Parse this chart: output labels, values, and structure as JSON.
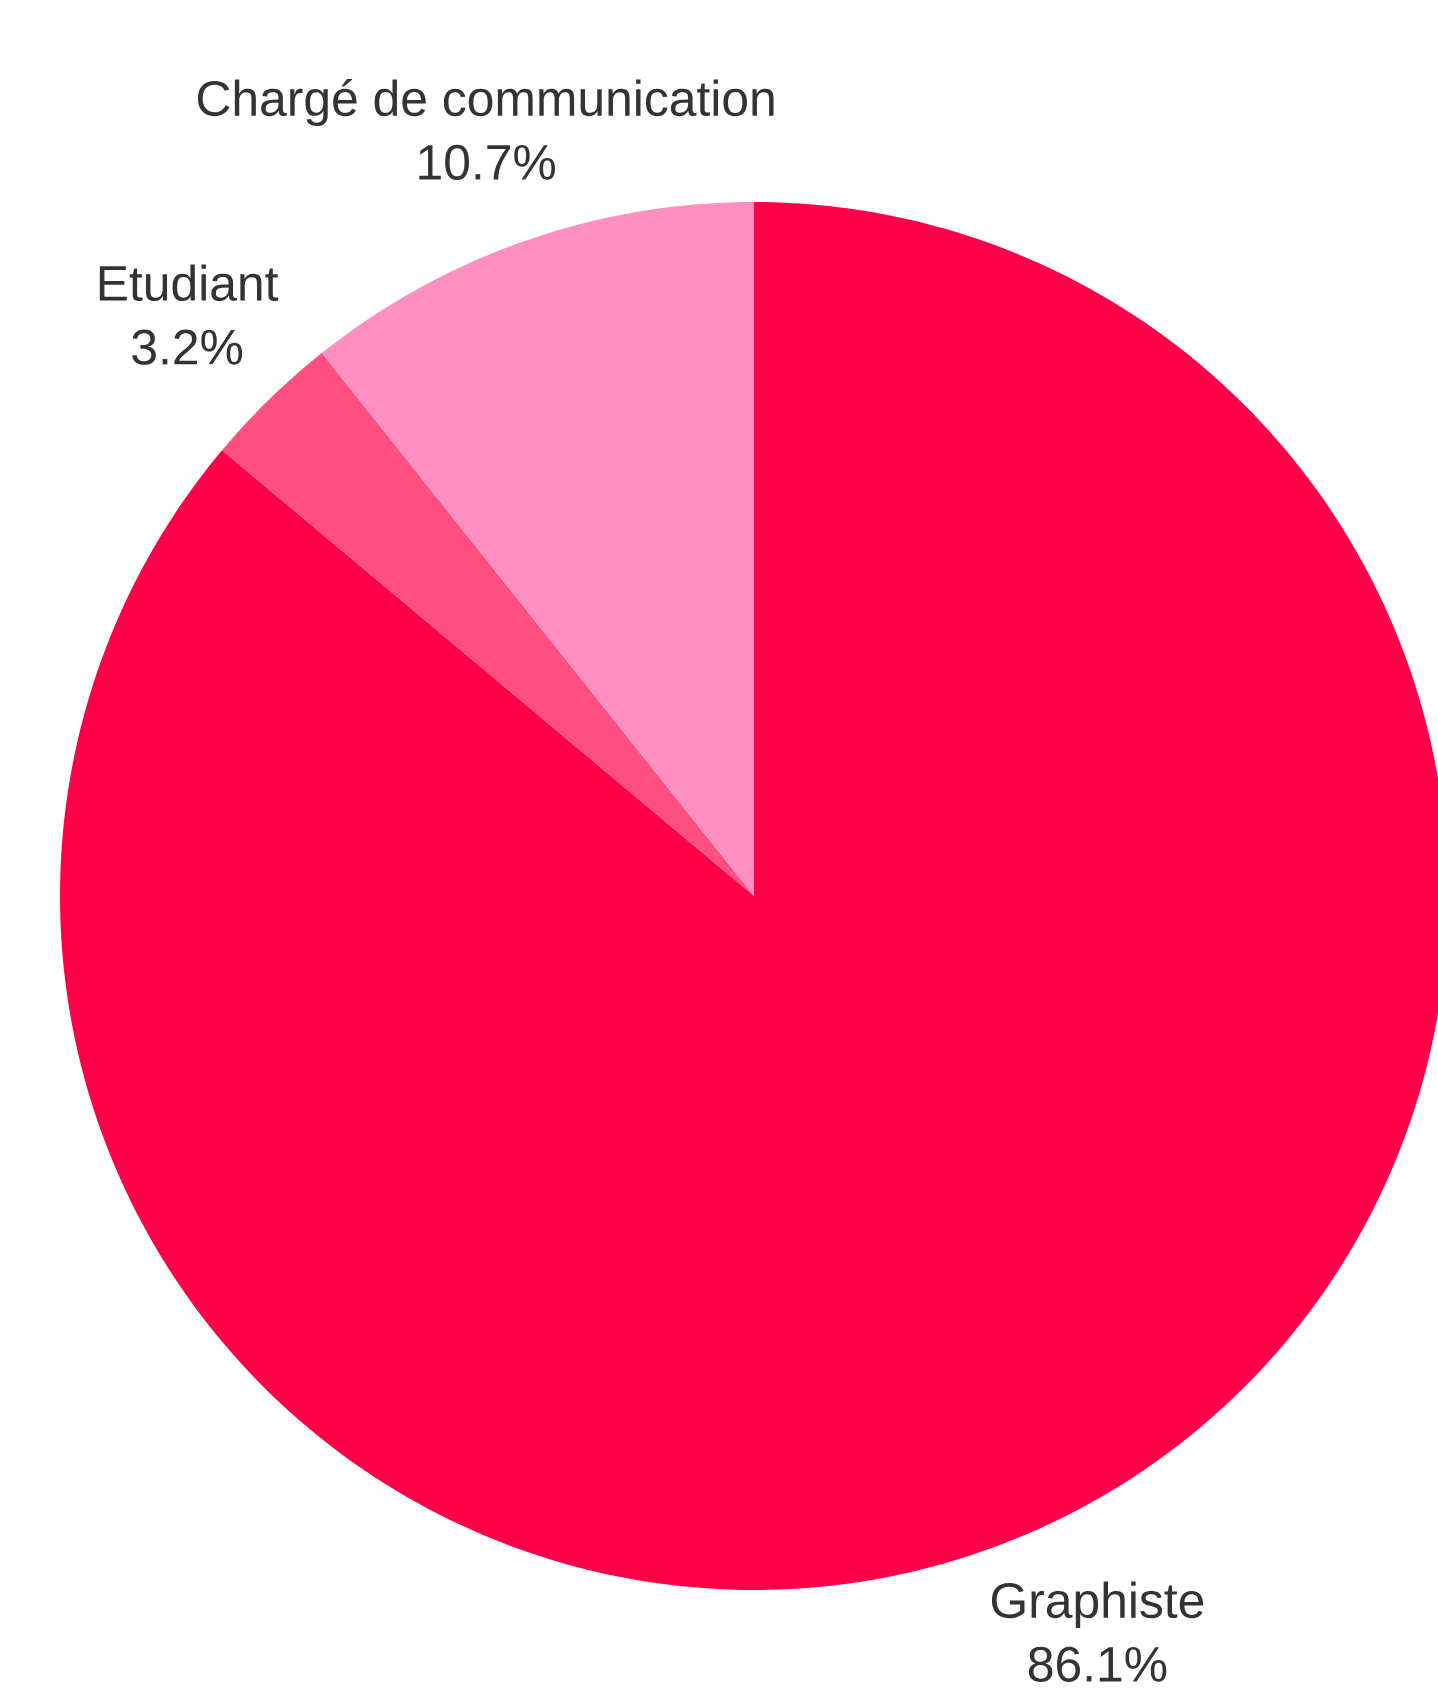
{
  "chart_data": {
    "type": "pie",
    "categories": [
      "Graphiste",
      "Etudiant",
      "Chargé de communication"
    ],
    "values": [
      86.1,
      3.2,
      10.7
    ],
    "value_labels": [
      "86.1%",
      "3.2%",
      "10.7%"
    ],
    "colors": [
      "#ff0048",
      "#ff4f80",
      "#ff8fc0"
    ]
  }
}
